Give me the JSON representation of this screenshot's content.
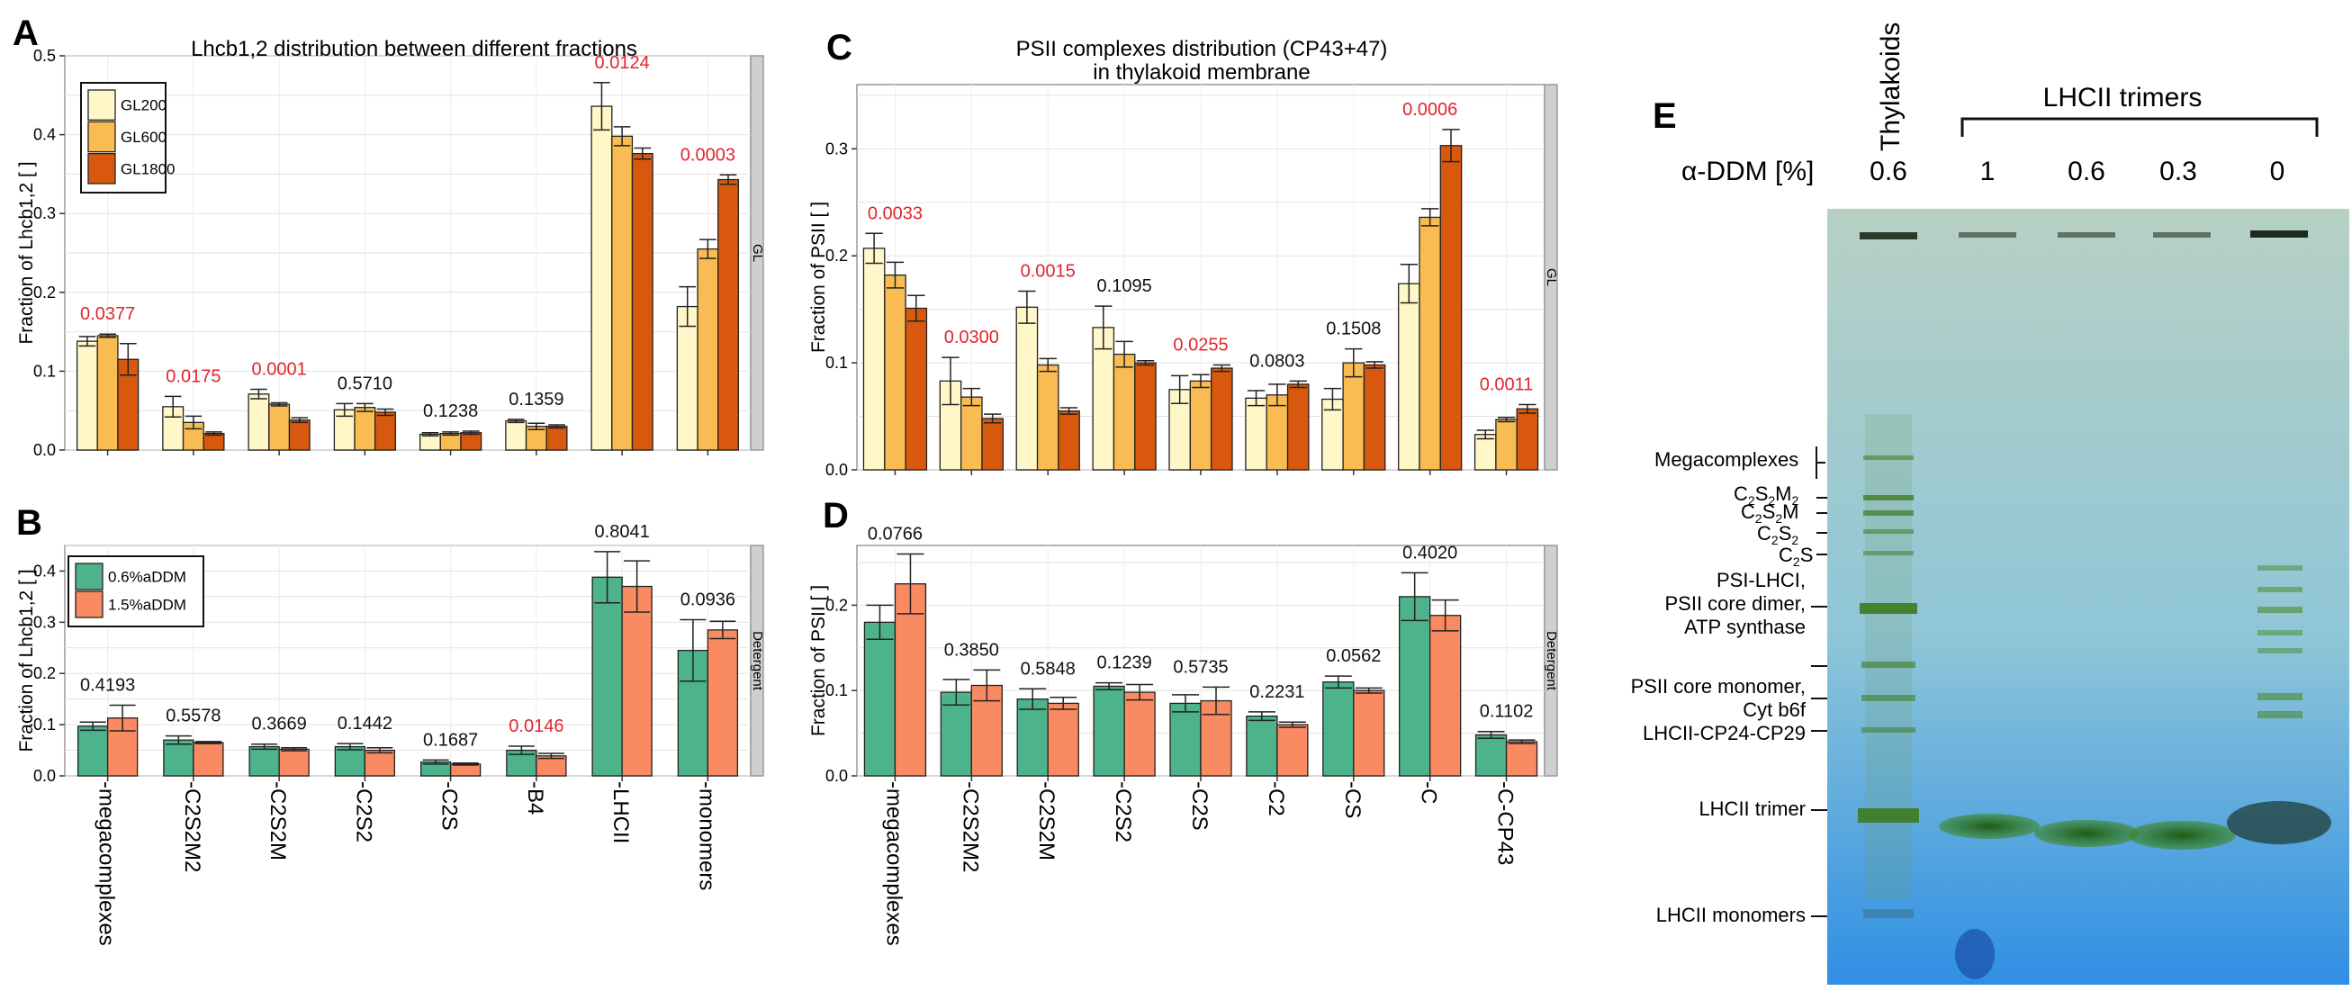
{
  "chart_data": [
    {
      "panel": "A",
      "type": "bar",
      "title": "Lhcb1,2 distribution between different fractions",
      "xlabel": "",
      "ylabel": "Fraction of Lhcb1,2 [ ]",
      "ylim": [
        0,
        0.5
      ],
      "yticks": [
        "0.0",
        "0.1",
        "0.2",
        "0.3",
        "0.4",
        "0.5"
      ],
      "strip_label": "GL",
      "categories": [
        "megacomplexes",
        "C2S2M2",
        "C2S2M",
        "C2S2",
        "C2S",
        "B4",
        "LHCII",
        "monomers"
      ],
      "series": [
        {
          "name": "GL200",
          "color": "#FFF7C8",
          "values": [
            0.138,
            0.055,
            0.071,
            0.051,
            0.02,
            0.037,
            0.436,
            0.182
          ],
          "errors": [
            0.006,
            0.013,
            0.006,
            0.008,
            0.002,
            0.002,
            0.03,
            0.025
          ]
        },
        {
          "name": "GL600",
          "color": "#F8BC53",
          "values": [
            0.145,
            0.035,
            0.058,
            0.054,
            0.021,
            0.03,
            0.398,
            0.255
          ],
          "errors": [
            0.002,
            0.008,
            0.002,
            0.005,
            0.002,
            0.004,
            0.012,
            0.012
          ]
        },
        {
          "name": "GL1800",
          "color": "#D8590E",
          "values": [
            0.115,
            0.021,
            0.038,
            0.048,
            0.022,
            0.03,
            0.376,
            0.343
          ],
          "errors": [
            0.02,
            0.002,
            0.003,
            0.004,
            0.002,
            0.002,
            0.007,
            0.006
          ]
        }
      ],
      "pvalues": [
        "0.0377",
        "0.0175",
        "0.0001",
        "0.5710",
        "0.1238",
        "0.1359",
        "0.0124",
        "0.0003"
      ],
      "pvalue_significant": [
        true,
        true,
        true,
        false,
        false,
        false,
        true,
        true
      ]
    },
    {
      "panel": "B",
      "type": "bar",
      "title": "",
      "xlabel": "",
      "ylabel": "Fraction of Lhcb1,2 [ ]",
      "ylim": [
        0,
        0.45
      ],
      "yticks": [
        "0.0",
        "0.1",
        "0.2",
        "0.3",
        "0.4"
      ],
      "strip_label": "Detergent",
      "categories": [
        "megacomplexes",
        "C2S2M2",
        "C2S2M",
        "C2S2",
        "C2S",
        "B4",
        "LHCII",
        "monomers"
      ],
      "category_labels": [
        "-megacomplexes",
        "-C2S2M2",
        "-C2S2M",
        "-C2S2",
        "-C2S",
        "-B4",
        "-LHCII",
        "-monomers"
      ],
      "series": [
        {
          "name": "0.6%aDDM",
          "color": "#4DB38A",
          "values": [
            0.097,
            0.07,
            0.057,
            0.057,
            0.027,
            0.05,
            0.388,
            0.245
          ],
          "errors": [
            0.008,
            0.008,
            0.005,
            0.006,
            0.004,
            0.008,
            0.05,
            0.06
          ]
        },
        {
          "name": "1.5%aDDM",
          "color": "#F98A61",
          "values": [
            0.113,
            0.065,
            0.052,
            0.05,
            0.023,
            0.039,
            0.37,
            0.285
          ],
          "errors": [
            0.025,
            0.002,
            0.003,
            0.005,
            0.002,
            0.005,
            0.05,
            0.017
          ]
        }
      ],
      "pvalues": [
        "0.4193",
        "0.5578",
        "0.3669",
        "0.1442",
        "0.1687",
        "0.0146",
        "0.8041",
        "0.0936"
      ],
      "pvalue_significant": [
        false,
        false,
        false,
        false,
        false,
        true,
        false,
        false
      ]
    },
    {
      "panel": "C",
      "type": "bar",
      "title": "PSII complexes distribution (CP43+47)",
      "title_line2": "in thylakoid membrane",
      "xlabel": "",
      "ylabel": "Fraction of PSII [ ]",
      "ylim": [
        0,
        0.36
      ],
      "yticks": [
        "0.0",
        "0.1",
        "0.2",
        "0.3"
      ],
      "strip_label": "GL",
      "categories": [
        "megacomplexes",
        "C2S2M2",
        "C2S2M",
        "C2S2",
        "C2S",
        "C2",
        "CS",
        "C",
        "C-CP43"
      ],
      "series": [
        {
          "name": "GL200",
          "color": "#FFF7C8",
          "values": [
            0.207,
            0.083,
            0.152,
            0.133,
            0.075,
            0.067,
            0.066,
            0.174,
            0.033
          ]
        },
        {
          "name": "GL600",
          "color": "#F8BC53",
          "values": [
            0.182,
            0.068,
            0.098,
            0.108,
            0.083,
            0.07,
            0.1,
            0.236,
            0.047
          ]
        },
        {
          "name": "GL1800",
          "color": "#D8590E",
          "values": [
            0.151,
            0.048,
            0.055,
            0.1,
            0.095,
            0.08,
            0.098,
            0.303,
            0.057
          ]
        }
      ],
      "errors": [
        [
          0.014,
          0.022,
          0.015,
          0.02,
          0.013,
          0.007,
          0.01,
          0.018,
          0.004
        ],
        [
          0.012,
          0.008,
          0.006,
          0.012,
          0.006,
          0.01,
          0.013,
          0.008,
          0.002
        ],
        [
          0.012,
          0.004,
          0.003,
          0.002,
          0.003,
          0.003,
          0.003,
          0.015,
          0.004
        ]
      ],
      "pvalues": [
        "0.0033",
        "0.0300",
        "0.0015",
        "0.1095",
        "0.0255",
        "0.0803",
        "0.1508",
        "0.0006",
        "0.0011"
      ],
      "pvalue_significant": [
        true,
        true,
        true,
        false,
        true,
        false,
        false,
        true,
        true
      ]
    },
    {
      "panel": "D",
      "type": "bar",
      "title": "",
      "xlabel": "",
      "ylabel": "Fraction of PSII [ ]",
      "ylim": [
        0,
        0.27
      ],
      "yticks": [
        "0.0",
        "0.1",
        "0.2"
      ],
      "strip_label": "Detergent",
      "categories": [
        "megacomplexes",
        "C2S2M2",
        "C2S2M",
        "C2S2",
        "C2S",
        "C2",
        "CS",
        "C",
        "C-CP43"
      ],
      "category_labels": [
        "-megacomplexes",
        "-C2S2M2",
        "-C2S2M",
        "-C2S2",
        "-C2S",
        "-C2",
        "-CS",
        "-C",
        "-C-CP43"
      ],
      "series": [
        {
          "name": "0.6%aDDM",
          "color": "#4DB38A",
          "values": [
            0.18,
            0.098,
            0.09,
            0.105,
            0.085,
            0.07,
            0.11,
            0.21,
            0.048
          ]
        },
        {
          "name": "1.5%aDDM",
          "color": "#F98A61",
          "values": [
            0.225,
            0.106,
            0.085,
            0.098,
            0.088,
            0.06,
            0.1,
            0.188,
            0.04
          ]
        }
      ],
      "errors": [
        [
          0.02,
          0.015,
          0.012,
          0.004,
          0.01,
          0.005,
          0.007,
          0.028,
          0.004
        ],
        [
          0.035,
          0.018,
          0.007,
          0.009,
          0.016,
          0.003,
          0.003,
          0.018,
          0.002
        ]
      ],
      "pvalues": [
        "0.0766",
        "0.3850",
        "0.5848",
        "0.1239",
        "0.5735",
        "0.2231",
        "0.0562",
        "0.4020",
        "0.1102"
      ],
      "pvalue_significant": [
        false,
        false,
        false,
        false,
        false,
        false,
        false,
        false,
        false
      ]
    }
  ],
  "panel_letters": {
    "a": "A",
    "b": "B",
    "c": "C",
    "d": "D",
    "e": "E"
  },
  "gel": {
    "lane_header_rotated": "Thylakoids",
    "group_label": "LHCII trimers",
    "ddm_label": "α-DDM [%]",
    "lane_values": [
      "0.6",
      "1",
      "0.6",
      "0.3",
      "0"
    ],
    "band_labels": {
      "megacomplexes": "Megacomplexes",
      "c2s2m2": "C2S2M2",
      "c2s2m": "C2S2M",
      "c2s2": "C2S2",
      "c2s": "C2S",
      "psi_line1": "PSI-LHCI,",
      "psi_line2": "PSII core dimer,",
      "psi_line3": "ATP synthase",
      "mono_line1": "PSII core monomer,",
      "mono_line2": "Cyt b6f",
      "mono_line3": "LHCII-CP24-CP29",
      "lhcii_trimer": "LHCII trimer",
      "lhcii_monomers": "LHCII monomers"
    },
    "colors": {
      "gel_top": "#b7d0c4",
      "gel_mid": "#8fc6d8",
      "gel_bottom": "#2f8fe4",
      "band": "#3e7a1f"
    }
  }
}
